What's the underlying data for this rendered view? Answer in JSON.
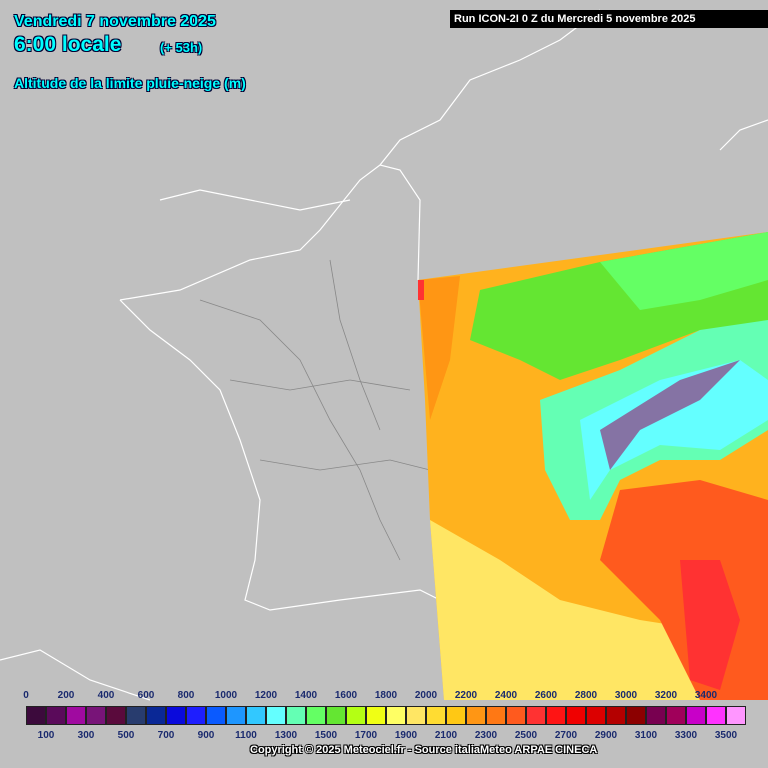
{
  "header": {
    "date": "Vendredi 7 novembre 2025",
    "time": "6:00 locale",
    "offset": "(+ 53h)",
    "title": "Altitude de la limite pluie-neige (m)"
  },
  "run": "Run ICON-2I 0 Z du Mercredi 5 novembre 2025",
  "legend": {
    "top_labels": [
      0,
      200,
      400,
      600,
      800,
      1000,
      1200,
      1400,
      1600,
      1800,
      2000,
      2200,
      2400,
      2600,
      2800,
      3000,
      3200,
      3400
    ],
    "bottom_labels": [
      100,
      300,
      500,
      700,
      900,
      1100,
      1300,
      1500,
      1700,
      1900,
      2100,
      2300,
      2500,
      2700,
      2900,
      3100,
      3300,
      3500
    ],
    "colors": [
      "#3c0a3c",
      "#5a0a5a",
      "#a00aa0",
      "#781478",
      "#5a0a3c",
      "#283c6e",
      "#0a2896",
      "#0a0adc",
      "#1e1eff",
      "#0a5aff",
      "#1e96ff",
      "#32c8ff",
      "#64ffff",
      "#64ffb4",
      "#64ff64",
      "#64e632",
      "#b4ff14",
      "#f0ff14",
      "#ffff64",
      "#ffe664",
      "#ffdc32",
      "#ffc814",
      "#ff9614",
      "#ff7814",
      "#ff5a1e",
      "#ff3232",
      "#ff1414",
      "#f00000",
      "#dc0000",
      "#b40000",
      "#8c0000",
      "#780050",
      "#a0005a",
      "#c800c8",
      "#ff32ff",
      "#ff96ff"
    ]
  },
  "copyright": "Copyright © 2025 Meteociel.fr - Source italiaMeteo ARPAE CINECA"
}
